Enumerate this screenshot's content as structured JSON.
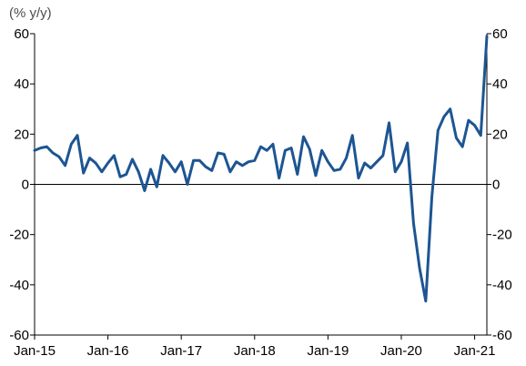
{
  "chart_data": {
    "type": "line",
    "unit_label": "(% y/y)",
    "ylim": [
      -60,
      60
    ],
    "y_ticks": [
      "60",
      "40",
      "20",
      "0",
      "-20",
      "-40",
      "-60"
    ],
    "y_tick_values": [
      60,
      40,
      20,
      0,
      -20,
      -40,
      -60
    ],
    "x_tick_labels": [
      "Jan-15",
      "Jan-16",
      "Jan-17",
      "Jan-18",
      "Jan-19",
      "Jan-20",
      "Jan-21"
    ],
    "x_start": "Jan-15",
    "x_end": "Feb-21",
    "grid": false,
    "zero_line": true,
    "legend": "none",
    "series": [
      {
        "color": "#1d5592",
        "values": [
          13.5,
          14.5,
          15.0,
          12.5,
          11.0,
          7.5,
          16.0,
          19.5,
          4.5,
          10.5,
          8.5,
          5.0,
          8.5,
          11.5,
          3.0,
          4.0,
          10.0,
          5.0,
          -2.5,
          6.0,
          -1.0,
          11.5,
          8.5,
          5.0,
          9.0,
          0.0,
          9.5,
          9.5,
          7.0,
          5.5,
          12.5,
          12.0,
          5.0,
          9.0,
          7.5,
          9.0,
          9.5,
          15.0,
          13.5,
          16.0,
          2.5,
          13.5,
          14.5,
          4.0,
          19.0,
          14.0,
          3.5,
          13.5,
          9.0,
          5.5,
          6.0,
          10.5,
          19.5,
          2.5,
          8.5,
          6.5,
          9.0,
          11.5,
          24.5,
          5.0,
          9.0,
          16.5,
          -15.5,
          -33.5,
          -46.5,
          -5.0,
          21.5,
          27.0,
          30.0,
          18.5,
          15.0,
          25.5,
          23.5,
          19.5,
          59.0
        ]
      }
    ]
  }
}
